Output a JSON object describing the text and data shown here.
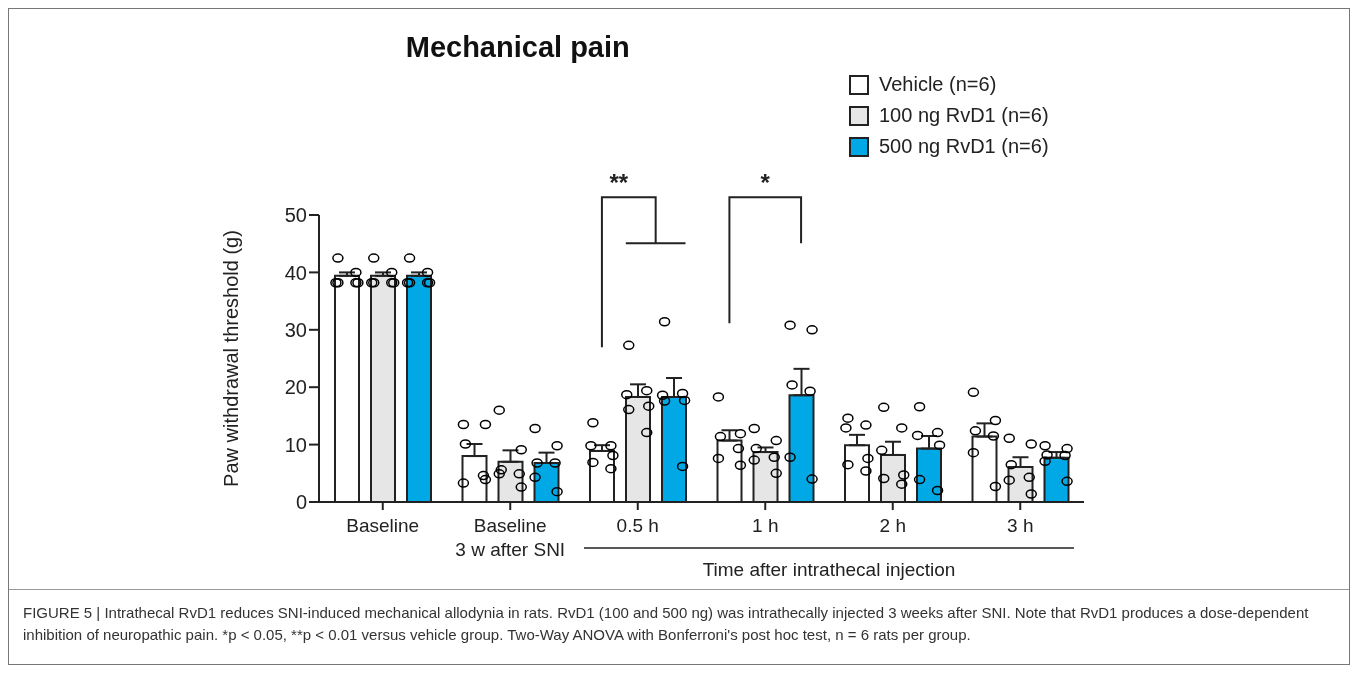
{
  "chart_data": {
    "type": "bar",
    "title": "Mechanical pain",
    "ylabel": "Paw withdrawal threshold (g)",
    "categories": [
      "Baseline",
      "Baseline\n3 w after SNI",
      "0.5 h",
      "1 h",
      "2 h",
      "3 h"
    ],
    "series": [
      {
        "name": "Vehicle (n=6)",
        "color": "#ffffff",
        "values": [
          39.4,
          8.0,
          8.9,
          10.7,
          9.9,
          11.4
        ],
        "errors": [
          [
            39.4,
            40.0
          ],
          [
            8.0,
            10.1
          ],
          [
            8.9,
            9.9
          ],
          [
            10.7,
            12.5
          ],
          [
            9.9,
            11.7
          ],
          [
            11.4,
            13.7
          ]
        ]
      },
      {
        "name": "100 ng RvD1 (n=6)",
        "color": "#e6e6e6",
        "values": [
          39.4,
          7.0,
          18.3,
          8.7,
          8.2,
          6.1
        ],
        "errors": [
          [
            39.4,
            40.0
          ],
          [
            7.0,
            9.0
          ],
          [
            18.3,
            20.5
          ],
          [
            8.7,
            9.5
          ],
          [
            8.2,
            10.5
          ],
          [
            6.1,
            7.8
          ]
        ]
      },
      {
        "name": "500 ng RvD1 (n=6)",
        "color": "#00a9e6",
        "values": [
          39.4,
          6.8,
          18.3,
          18.6,
          9.3,
          7.7
        ],
        "errors": [
          [
            39.4,
            40.0
          ],
          [
            6.8,
            8.6
          ],
          [
            18.3,
            21.6
          ],
          [
            18.6,
            23.2
          ],
          [
            9.3,
            11.5
          ],
          [
            7.7,
            8.7
          ]
        ]
      },
      {
        "type": "scatter",
        "color": "#000000",
        "x": [
          "Baseline",
          "Baseline",
          "Baseline",
          "Baseline",
          "Baseline",
          "Baseline",
          "Baseline\n3 w after SNI",
          "Baseline\n3 w after SNI",
          "Baseline\n3 w after SNI",
          "Baseline\n3 w after SNI",
          "Baseline\n3 w after SNI",
          "Baseline\n3 w after SNI",
          "0.5 h",
          "0.5 h",
          "0.5 h",
          "0.5 h",
          "0.5 h",
          "0.5 h",
          "1 h",
          "1 h",
          "1 h",
          "1 h",
          "1 h",
          "1 h",
          "2 h",
          "2 h",
          "2 h",
          "2 h",
          "2 h",
          "2 h",
          "3 h",
          "3 h",
          "3 h",
          "3 h",
          "3 h",
          "3 h"
        ],
        "values": [
          42.5,
          40.0,
          38.2,
          38.2,
          38.2,
          38.2,
          13.5,
          13.5,
          10.1,
          4.6,
          3.3,
          3.9,
          13.8,
          9.8,
          9.8,
          8.1,
          6.9,
          5.8,
          18.3,
          11.9,
          11.4,
          9.3,
          7.6,
          6.4,
          14.6,
          13.4,
          12.9,
          7.6,
          6.5,
          5.4,
          19.1,
          14.2,
          12.4,
          11.5,
          8.6,
          2.7
        ]
      },
      {
        "type": "scatter",
        "color": "#000000",
        "x": [
          "Baseline",
          "Baseline",
          "Baseline",
          "Baseline",
          "Baseline",
          "Baseline",
          "Baseline\n3 w after SNI",
          "Baseline\n3 w after SNI",
          "Baseline\n3 w after SNI",
          "Baseline\n3 w after SNI",
          "Baseline\n3 w after SNI",
          "Baseline\n3 w after SNI",
          "0.5 h",
          "0.5 h",
          "0.5 h",
          "0.5 h",
          "0.5 h",
          "0.5 h",
          "1 h",
          "1 h",
          "1 h",
          "1 h",
          "1 h",
          "1 h",
          "2 h",
          "2 h",
          "2 h",
          "2 h",
          "2 h",
          "2 h",
          "3 h",
          "3 h",
          "3 h",
          "3 h",
          "3 h",
          "3 h"
        ],
        "values": [
          42.5,
          40.0,
          38.2,
          38.2,
          38.2,
          38.2,
          16.0,
          9.1,
          5.6,
          4.9,
          4.9,
          2.6,
          27.3,
          19.4,
          18.7,
          16.7,
          16.1,
          12.1,
          12.8,
          10.7,
          9.3,
          7.8,
          7.3,
          5.0,
          16.5,
          12.9,
          9.0,
          4.7,
          4.1,
          3.1,
          11.1,
          10.1,
          6.5,
          4.3,
          3.8,
          1.4
        ]
      },
      {
        "type": "scatter",
        "color": "#000000",
        "x": [
          "Baseline",
          "Baseline",
          "Baseline",
          "Baseline",
          "Baseline",
          "Baseline",
          "Baseline\n3 w after SNI",
          "Baseline\n3 w after SNI",
          "Baseline\n3 w after SNI",
          "Baseline\n3 w after SNI",
          "Baseline\n3 w after SNI",
          "Baseline\n3 w after SNI",
          "0.5 h",
          "0.5 h",
          "0.5 h",
          "0.5 h",
          "0.5 h",
          "0.5 h",
          "1 h",
          "1 h",
          "1 h",
          "1 h",
          "1 h",
          "1 h",
          "2 h",
          "2 h",
          "2 h",
          "2 h",
          "2 h",
          "2 h",
          "3 h",
          "3 h",
          "3 h",
          "3 h",
          "3 h",
          "3 h"
        ],
        "values": [
          42.5,
          40.0,
          38.2,
          38.2,
          38.2,
          38.2,
          12.8,
          9.8,
          6.8,
          6.8,
          4.3,
          1.8,
          31.4,
          18.9,
          18.6,
          17.7,
          17.6,
          6.2,
          30.8,
          30.0,
          20.4,
          19.3,
          7.8,
          4.0,
          16.6,
          12.1,
          11.6,
          9.9,
          3.9,
          2.0,
          9.8,
          9.3,
          8.2,
          8.1,
          7.1,
          3.6
        ]
      }
    ],
    "ylim": [
      0,
      50
    ],
    "yticks": [
      0,
      10,
      20,
      30,
      40,
      50
    ],
    "grid": false,
    "legend": "top right",
    "annotations": [
      "**",
      "*",
      "Time after intrathecal injection",
      "FIGURE 5 | Intrathecal RvD1 reduces SNI-induced mechanical allodynia in rats. RvD1 (100 and 500 ng) was intrathecally injected 3 weeks after SNI. Note that RvD1 produces a dose-dependent inhibition of neuropathic pain. *p < 0.05, **p < 0.01 versus vehicle group. Two-Way ANOVA with Bonferroni's post hoc test, n = 6 rats per group."
    ]
  }
}
